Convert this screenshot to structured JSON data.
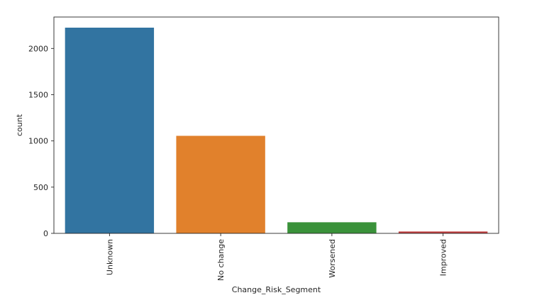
{
  "chart_data": {
    "type": "bar",
    "title": "",
    "xlabel": "Change_Risk_Segment",
    "ylabel": "count",
    "categories": [
      "Unknown",
      "No change",
      "Worsened",
      "Improved"
    ],
    "values": [
      2225,
      1055,
      120,
      20
    ],
    "ylim": [
      0,
      2340
    ],
    "yticks": [
      0,
      500,
      1000,
      1500,
      2000
    ],
    "grid": false,
    "legend": "none",
    "colors": [
      "#3274a1",
      "#e1812c",
      "#3a923a",
      "#c03d3e"
    ]
  }
}
